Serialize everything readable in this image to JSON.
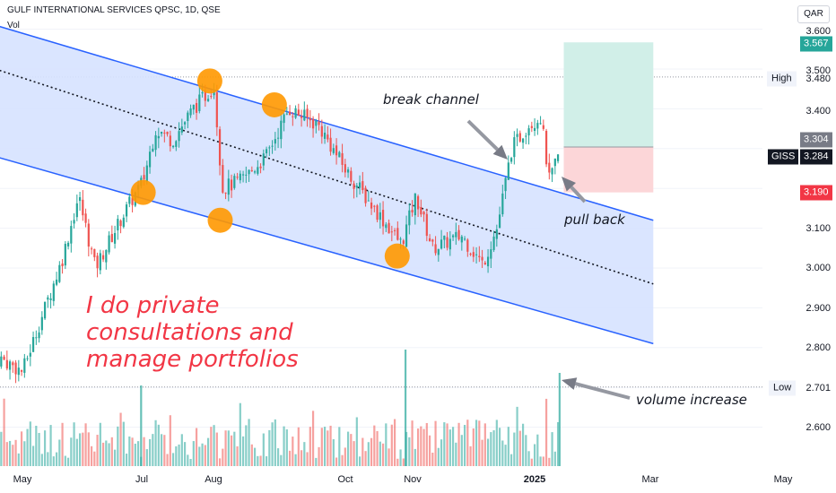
{
  "header": {
    "title": "GULF INTERNATIONAL SERVICES QPSC, 1D, QSE",
    "volume_label": "Vol"
  },
  "currency": "QAR",
  "price_axis": {
    "ticks": [
      "3.600",
      "3.500",
      "3.400",
      "3.100",
      "3.000",
      "2.900",
      "2.800",
      "2.600"
    ],
    "high_label": "High",
    "high_value": "3.480",
    "low_label": "Low",
    "low_value": "2.701",
    "badge_target": "3.567",
    "badge_entry": "3.304",
    "ticker": "GISS",
    "last_price": "3.284",
    "badge_stop": "3.190"
  },
  "time_axis": {
    "labels": [
      "May",
      "Jul",
      "Aug",
      "Oct",
      "Nov",
      "2025",
      "Mar",
      "May"
    ]
  },
  "annotations": {
    "break_channel": "break channel",
    "pull_back": "pull back",
    "volume_increase": "volume increase",
    "promo_lines": [
      "I do private",
      "consultations and",
      "manage portfolios"
    ]
  },
  "colors": {
    "up": "#26a69a",
    "down": "#ef5350",
    "channel_line": "#2962ff",
    "channel_fill": "#d6e2ff",
    "marker": "#ff9800",
    "target_zone": "#d1efe8",
    "stop_zone": "#fcd6d8",
    "promo": "#f23645",
    "badge_dark": "#131722",
    "badge_gray": "#787b86",
    "badge_red": "#f23645"
  },
  "chart_data": {
    "type": "candlestick",
    "series_waypoints": [
      {
        "t": "Apr 18",
        "close": 2.78
      },
      {
        "t": "May 1",
        "close": 2.74
      },
      {
        "t": "May 20",
        "close": 3.02
      },
      {
        "t": "May 28",
        "close": 3.18
      },
      {
        "t": "Jun 5",
        "close": 3.0
      },
      {
        "t": "Jun 18",
        "close": 3.13
      },
      {
        "t": "Jun 28",
        "close": 3.22
      },
      {
        "t": "Jul 4",
        "close": 3.35
      },
      {
        "t": "Jul 12",
        "close": 3.32
      },
      {
        "t": "Jul 22",
        "close": 3.4
      },
      {
        "t": "Jul 29",
        "close": 3.44
      },
      {
        "t": "Aug 1",
        "close": 3.46
      },
      {
        "t": "Aug 5",
        "close": 3.2
      },
      {
        "t": "Aug 14",
        "close": 3.22
      },
      {
        "t": "Aug 26",
        "close": 3.28
      },
      {
        "t": "Sep 6",
        "close": 3.4
      },
      {
        "t": "Sep 20",
        "close": 3.36
      },
      {
        "t": "Oct 4",
        "close": 3.24
      },
      {
        "t": "Oct 17",
        "close": 3.15
      },
      {
        "t": "Oct 30",
        "close": 3.06
      },
      {
        "t": "Nov 6",
        "close": 3.18
      },
      {
        "t": "Nov 14",
        "close": 3.05
      },
      {
        "t": "Nov 28",
        "close": 3.08
      },
      {
        "t": "Dec 8",
        "close": 3.01
      },
      {
        "t": "Dec 15",
        "close": 3.1
      },
      {
        "t": "Dec 22",
        "close": 3.3
      },
      {
        "t": "Dec 30",
        "close": 3.36
      },
      {
        "t": "Jan 5",
        "close": 3.38
      },
      {
        "t": "Jan 9",
        "close": 3.22
      },
      {
        "t": "Jan 14",
        "close": 3.284
      }
    ],
    "channel": {
      "upper": [
        {
          "t": "Apr 18",
          "v": 3.61
        },
        {
          "t": "Feb 28",
          "v": 3.12
        }
      ],
      "middle": [
        {
          "t": "Apr 18",
          "v": 3.5
        },
        {
          "t": "Feb 28",
          "v": 2.96
        }
      ],
      "lower": [
        {
          "t": "Apr 18",
          "v": 3.28
        },
        {
          "t": "Feb 28",
          "v": 2.81
        }
      ]
    },
    "markers": [
      {
        "t": "Jun 28",
        "v": 3.19
      },
      {
        "t": "Jul 30",
        "v": 3.47
      },
      {
        "t": "Aug 4",
        "v": 3.12
      },
      {
        "t": "Aug 30",
        "v": 3.41
      },
      {
        "t": "Oct 28",
        "v": 3.03
      }
    ],
    "position": {
      "entry": 3.304,
      "target": 3.567,
      "stop": 3.19,
      "start": "Jan 16",
      "end": "Feb 28"
    },
    "high": 3.48,
    "low": 2.701
  }
}
